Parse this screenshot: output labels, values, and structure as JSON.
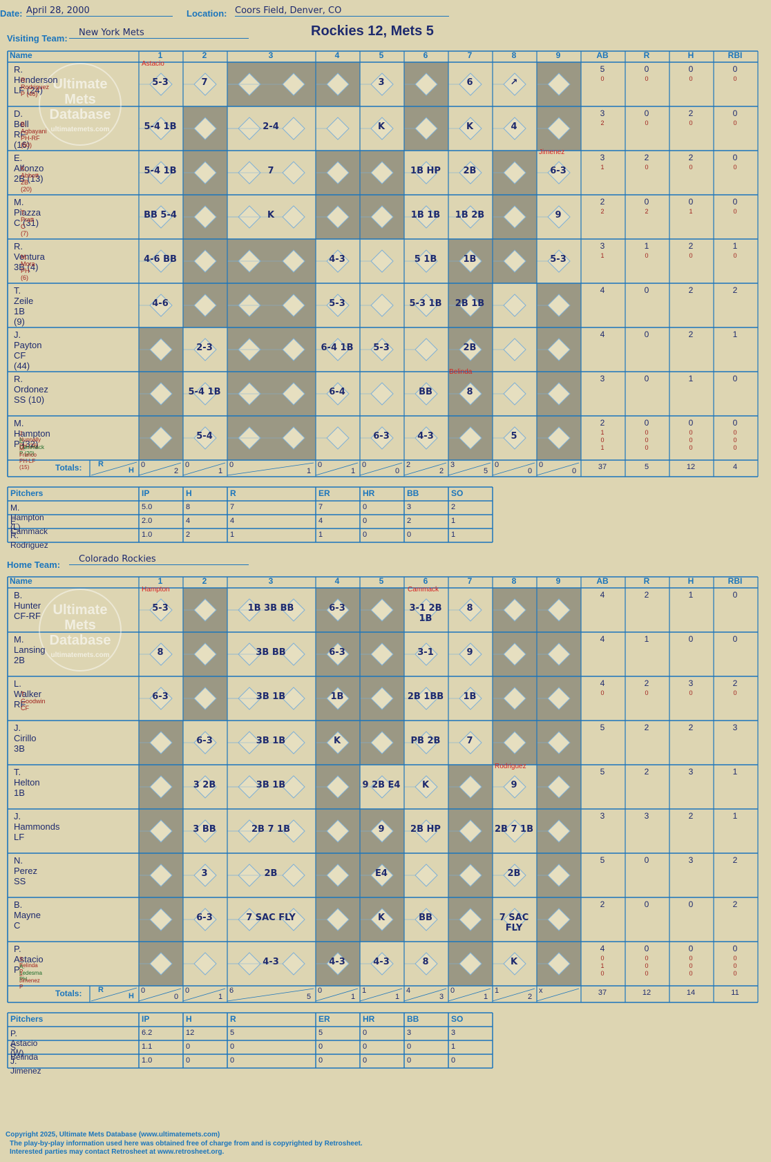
{
  "header": {
    "date_label": "Date:",
    "date": "April 28, 2000",
    "location_label": "Location:",
    "location": "Coors Field, Denver, CO",
    "visiting_label": "Visiting Team:",
    "visiting_team": "New York Mets",
    "home_label": "Home Team:",
    "home_team": "Colorado Rockies",
    "title": "Rockies 12, Mets 5"
  },
  "columns": {
    "name": "Name",
    "innings": [
      "1",
      "2",
      "3",
      "4",
      "5",
      "6",
      "7",
      "8",
      "9"
    ],
    "stats": [
      "AB",
      "R",
      "H",
      "RBI"
    ],
    "totals_label": "Totals:",
    "r": "R",
    "h": "H"
  },
  "watermark": {
    "line1": "Ultimate",
    "line2": "Mets",
    "line3": "Database",
    "url": "ultimatemets.com"
  },
  "visitors": {
    "players": [
      {
        "name": "R. Henderson LF (24)",
        "subs": [
          "R. Rodriguez P (46)"
        ],
        "ab": "5",
        "r": "0",
        "h": "0",
        "rbi": "0",
        "sub_stats": [
          [
            "0",
            "0",
            "0",
            "0"
          ]
        ]
      },
      {
        "name": "D. Bell RF (16)",
        "subs": [
          "B. Agbayani PH-RF (50)"
        ],
        "ab": "3",
        "r": "0",
        "h": "2",
        "rbi": "0",
        "sub_stats": [
          [
            "2",
            "0",
            "0",
            "0"
          ]
        ]
      },
      {
        "name": "E. Alfonzo 2B (13)",
        "subs": [
          "K. Abbott 2B (20)"
        ],
        "ab": "3",
        "r": "2",
        "h": "2",
        "rbi": "0",
        "sub_stats": [
          [
            "1",
            "0",
            "0",
            "0"
          ]
        ]
      },
      {
        "name": "M. Piazza C (31)",
        "subs": [
          "T. Pratt C (7)"
        ],
        "ab": "2",
        "r": "0",
        "h": "0",
        "rbi": "0",
        "sub_stats": [
          [
            "2",
            "2",
            "1",
            "0"
          ]
        ]
      },
      {
        "name": "R. Ventura 3B (4)",
        "subs": [
          "M. Mora PH (6)"
        ],
        "ab": "3",
        "r": "1",
        "h": "2",
        "rbi": "1",
        "sub_stats": [
          [
            "1",
            "0",
            "0",
            "0"
          ]
        ]
      },
      {
        "name": "T. Zeile 1B (9)",
        "subs": [],
        "ab": "4",
        "r": "0",
        "h": "2",
        "rbi": "2",
        "sub_stats": []
      },
      {
        "name": "J. Payton CF (44)",
        "subs": [],
        "ab": "4",
        "r": "0",
        "h": "2",
        "rbi": "1",
        "sub_stats": []
      },
      {
        "name": "R. Ordonez SS (10)",
        "subs": [],
        "ab": "3",
        "r": "0",
        "h": "1",
        "rbi": "0",
        "sub_stats": []
      },
      {
        "name": "M. Hampton P (32)",
        "subs": [
          "J. Nunnally PH (26)",
          "E. Cammack P (20)",
          "M. Franco PH-LF (15)"
        ],
        "ab": "2",
        "r": "0",
        "h": "0",
        "rbi": "0",
        "sub_stats": [
          [
            "1",
            "0",
            "0",
            "0"
          ],
          [
            "0",
            "0",
            "0",
            "0"
          ],
          [
            "1",
            "0",
            "0",
            "0"
          ]
        ]
      }
    ],
    "plays": [
      [
        "5-3",
        "7",
        "",
        "",
        "3",
        "",
        "6",
        "↗",
        ""
      ],
      [
        "5-4 1B",
        "",
        "2-4",
        "",
        "K",
        "",
        "K",
        "4",
        ""
      ],
      [
        "5-4 1B",
        "",
        "7",
        "",
        "",
        "1B HP",
        "2B",
        "",
        "6-3"
      ],
      [
        "BB 5-4",
        "",
        "K",
        "",
        "",
        "1B 1B",
        "1B 2B",
        "",
        "9"
      ],
      [
        "4-6 BB",
        "",
        "",
        "4-3",
        "",
        "5 1B",
        "1B",
        "",
        "5-3"
      ],
      [
        "4-6",
        "",
        "",
        "5-3",
        "",
        "5-3 1B",
        "2B 1B",
        "",
        ""
      ],
      [
        "",
        "2-3",
        "",
        "6-4 1B",
        "5-3",
        "",
        "2B",
        "",
        ""
      ],
      [
        "",
        "5-4 1B",
        "",
        "6-4",
        "",
        "BB",
        "8",
        "",
        ""
      ],
      [
        "",
        "5-4",
        "",
        "",
        "6-3",
        "4-3",
        "",
        "5",
        ""
      ]
    ],
    "notes": {
      "astacio": "Astacio",
      "jimenez": "Jimenez",
      "belinda": "Belinda"
    },
    "totals": {
      "innings": [
        [
          "0",
          "2"
        ],
        [
          "0",
          "1"
        ],
        [
          "0",
          "1"
        ],
        [
          "0",
          "1"
        ],
        [
          "0",
          "0"
        ],
        [
          "2",
          "2"
        ],
        [
          "3",
          "5"
        ],
        [
          "0",
          "0"
        ],
        [
          "0",
          "0"
        ]
      ],
      "ab": "37",
      "r": "5",
      "h": "12",
      "rbi": "4"
    },
    "pitching": {
      "header": [
        "Pitchers",
        "IP",
        "H",
        "R",
        "ER",
        "HR",
        "BB",
        "SO"
      ],
      "rows": [
        [
          "M. Hampton (L)",
          "5.0",
          "8",
          "7",
          "7",
          "0",
          "3",
          "2"
        ],
        [
          "E. Cammack",
          "2.0",
          "4",
          "4",
          "4",
          "0",
          "2",
          "1"
        ],
        [
          "R. Rodriguez",
          "1.0",
          "2",
          "1",
          "1",
          "0",
          "0",
          "1"
        ]
      ]
    }
  },
  "home": {
    "players": [
      {
        "name": "B. Hunter CF-RF",
        "subs": [],
        "ab": "4",
        "r": "2",
        "h": "1",
        "rbi": "0",
        "sub_stats": []
      },
      {
        "name": "M. Lansing 2B",
        "subs": [],
        "ab": "4",
        "r": "1",
        "h": "0",
        "rbi": "0",
        "sub_stats": []
      },
      {
        "name": "L. Walker RF",
        "subs": [
          "T. Goodwin CF"
        ],
        "ab": "4",
        "r": "2",
        "h": "3",
        "rbi": "2",
        "sub_stats": [
          [
            "0",
            "0",
            "0",
            "0"
          ]
        ]
      },
      {
        "name": "J. Cirillo 3B",
        "subs": [],
        "ab": "5",
        "r": "2",
        "h": "2",
        "rbi": "3",
        "sub_stats": []
      },
      {
        "name": "T. Helton 1B",
        "subs": [],
        "ab": "5",
        "r": "2",
        "h": "3",
        "rbi": "1",
        "sub_stats": []
      },
      {
        "name": "J. Hammonds LF",
        "subs": [],
        "ab": "3",
        "r": "3",
        "h": "2",
        "rbi": "1",
        "sub_stats": []
      },
      {
        "name": "N. Perez SS",
        "subs": [],
        "ab": "5",
        "r": "0",
        "h": "3",
        "rbi": "2",
        "sub_stats": []
      },
      {
        "name": "B. Mayne C",
        "subs": [],
        "ab": "2",
        "r": "0",
        "h": "0",
        "rbi": "2",
        "sub_stats": []
      },
      {
        "name": "P. Astacio P",
        "subs": [
          "S. Belinda P",
          "A. Ledesma PH",
          "J. Jimenez P"
        ],
        "ab": "4",
        "r": "0",
        "h": "0",
        "rbi": "0",
        "sub_stats": [
          [
            "0",
            "0",
            "0",
            "0"
          ],
          [
            "1",
            "0",
            "0",
            "0"
          ],
          [
            "0",
            "0",
            "0",
            "0"
          ]
        ]
      }
    ],
    "plays": [
      [
        "5-3",
        "",
        "1B 3B BB",
        "6-3",
        "",
        "3-1 2B 1B",
        "8",
        "",
        ""
      ],
      [
        "8",
        "",
        "3B BB",
        "6-3",
        "",
        "3-1",
        "9",
        "",
        ""
      ],
      [
        "6-3",
        "",
        "3B 1B",
        "1B",
        "",
        "2B 1BB",
        "1B",
        "",
        ""
      ],
      [
        "",
        "6-3",
        "3B 1B",
        "K",
        "",
        "PB 2B",
        "7",
        "",
        ""
      ],
      [
        "",
        "3 2B",
        "3B 1B",
        "",
        "9 2B E4",
        "K",
        "",
        "9",
        ""
      ],
      [
        "",
        "3 BB",
        "2B 7 1B",
        "",
        "9",
        "2B HP",
        "",
        "2B 7 1B",
        ""
      ],
      [
        "",
        "3",
        "2B",
        "",
        "E4",
        "",
        "",
        "2B",
        ""
      ],
      [
        "",
        "6-3",
        "7 SAC FLY",
        "",
        "K",
        "BB",
        "",
        "7 SAC FLY",
        ""
      ],
      [
        "",
        "",
        "4-3",
        "4-3",
        "4-3",
        "8",
        "",
        "K",
        ""
      ]
    ],
    "notes": {
      "hampton": "Hampton",
      "cammack": "Cammack",
      "rodriguez": "Rodriguez"
    },
    "totals": {
      "innings": [
        [
          "0",
          "0"
        ],
        [
          "0",
          "1"
        ],
        [
          "6",
          "5"
        ],
        [
          "0",
          "1"
        ],
        [
          "1",
          "1"
        ],
        [
          "4",
          "3"
        ],
        [
          "0",
          "1"
        ],
        [
          "1",
          "2"
        ],
        [
          "x",
          ""
        ]
      ],
      "ab": "37",
      "r": "12",
      "h": "14",
      "rbi": "11"
    },
    "pitching": {
      "header": [
        "Pitchers",
        "IP",
        "H",
        "R",
        "ER",
        "HR",
        "BB",
        "SO"
      ],
      "rows": [
        [
          "P. Astacio (W)",
          "6.2",
          "12",
          "5",
          "5",
          "0",
          "3",
          "3"
        ],
        [
          "S. Belinda",
          "1.1",
          "0",
          "0",
          "0",
          "0",
          "0",
          "1"
        ],
        [
          "J. Jimenez",
          "1.0",
          "0",
          "0",
          "0",
          "0",
          "0",
          "0"
        ]
      ]
    }
  },
  "footer": {
    "line1": "Copyright 2025, Ultimate Mets Database (www.ultimatemets.com)",
    "line2": "The play-by-play information used here was obtained free of charge from and is copyrighted by Retrosheet.",
    "line3": "Interested parties may contact Retrosheet at www.retrosheet.org."
  },
  "colors": {
    "line": "#1b75bc",
    "ink": "#1e2a6e",
    "red": "#a0231f",
    "shade": "#9b9884",
    "paper": "#ddd5b2"
  }
}
